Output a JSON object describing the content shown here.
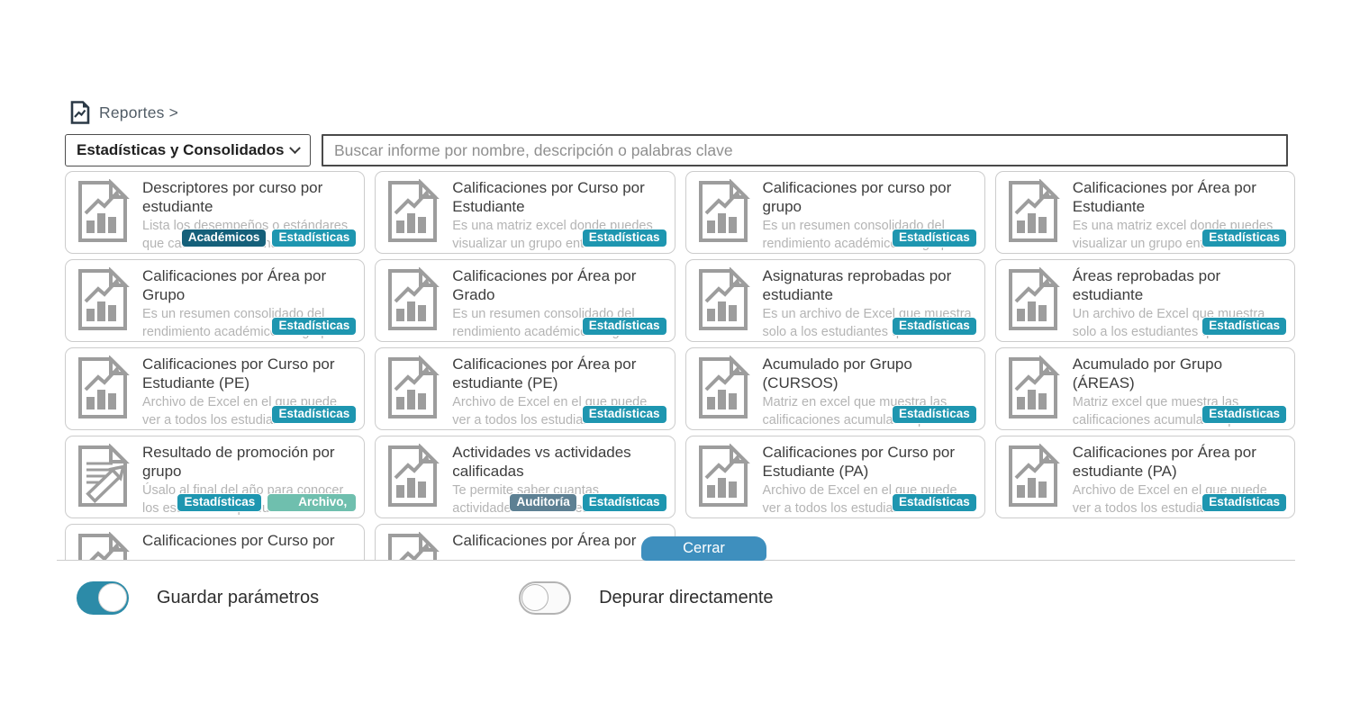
{
  "header": {
    "breadcrumb": "Reportes >"
  },
  "filters": {
    "category_selected": "Estadísticas y Consolidados",
    "search_placeholder": "Buscar informe por nombre, descripción o palabras clave"
  },
  "tag_colors": {
    "Estadísticas": "#1e96b0",
    "Académicos": "#15607a",
    "Auditoría": "#5d8093",
    "Archivo,": "#6fbfae"
  },
  "cards": [
    {
      "title": "Descriptores por curso por estudiante",
      "description": "Lista los desempeños o estándares que cada estudiante ha",
      "tags": [
        "Académicos",
        "Estadísticas"
      ],
      "icon": "chart-report-icon"
    },
    {
      "title": "Calificaciones por Curso por Estudiante",
      "description": "Es una matriz excel donde puedes visualizar un grupo entero de estudiantes",
      "tags": [
        "Estadísticas"
      ],
      "icon": "chart-report-icon"
    },
    {
      "title": "Calificaciones por curso por grupo",
      "description": "Es un resumen consolidado del rendimiento académico del grupo en cada cu",
      "tags": [
        "Estadísticas"
      ],
      "icon": "chart-report-icon"
    },
    {
      "title": "Calificaciones por Área por Estudiante",
      "description": "Es una matriz excel donde puedes visualizar un grupo entero de estudiantes",
      "tags": [
        "Estadísticas"
      ],
      "icon": "chart-report-icon"
    },
    {
      "title": "Calificaciones por Área por Grupo",
      "description": "Es un resumen consolidado del rendimiento académico del grupo en cada ár",
      "tags": [
        "Estadísticas"
      ],
      "icon": "chart-report-icon"
    },
    {
      "title": "Calificaciones por Área por Grado",
      "description": "Es un resumen consolidado del rendimiento académico del grado en cada ár",
      "tags": [
        "Estadísticas"
      ],
      "icon": "chart-report-icon"
    },
    {
      "title": "Asignaturas reprobadas por estudiante",
      "description": "Es un archivo de Excel que muestra solo a los estudiantes que no han apr",
      "tags": [
        "Estadísticas"
      ],
      "icon": "chart-report-icon"
    },
    {
      "title": "Áreas reprobadas por estudiante",
      "description": "Un archivo de Excel que muestra solo a los estudiantes que no han aprobado al menos un área. Las filas serán estudian",
      "tags": [
        "Estadísticas"
      ],
      "icon": "chart-report-icon"
    },
    {
      "title": "Calificaciones por Curso por Estudiante (PE)",
      "description": "Archivo de Excel en el que puede ver a todos los estudiantes de un gru",
      "tags": [
        "Estadísticas"
      ],
      "icon": "chart-report-icon"
    },
    {
      "title": "Calificaciones por Área por estudiante (PE)",
      "description": "Archivo de Excel en el que puede ver a todos los estudiantes de un gru",
      "tags": [
        "Estadísticas"
      ],
      "icon": "chart-report-icon"
    },
    {
      "title": "Acumulado por Grupo (CURSOS)",
      "description": "Matriz en excel que muestra las calificaciones acumuladas para el Periodo Académico actual de todos los e",
      "tags": [
        "Estadísticas"
      ],
      "icon": "chart-report-icon"
    },
    {
      "title": "Acumulado por Grupo (ÁREAS)",
      "description": "Matriz excel que muestra las calificaciones acumuladas para el Periodo Académico actual de todos los estudiantes",
      "tags": [
        "Estadísticas"
      ],
      "icon": "chart-report-icon"
    },
    {
      "title": "Resultado de promoción por grupo",
      "description": "Úsalo al final del año para conocer los estudiantes que fu",
      "tags": [
        "Estadísticas",
        "Archivo,"
      ],
      "icon": "promotion-report-icon"
    },
    {
      "title": "Actividades vs actividades calificadas",
      "description": "Te permite saber cuantas actividades se han creado en cada cu",
      "tags": [
        "Auditoría",
        "Estadísticas"
      ],
      "icon": "chart-report-icon"
    },
    {
      "title": "Calificaciones por Curso por Estudiante (PA)",
      "description": "Archivo de Excel en el que puede ver a todos los estudiantes de un gru",
      "tags": [
        "Estadísticas"
      ],
      "icon": "chart-report-icon"
    },
    {
      "title": "Calificaciones por Área por estudiante (PA)",
      "description": "Archivo de Excel en el que puede ver a todos los estudiantes de un gru",
      "tags": [
        "Estadísticas"
      ],
      "icon": "chart-report-icon"
    },
    {
      "title": "Calificaciones por Curso por",
      "description": "",
      "tags": [],
      "icon": "chart-report-icon"
    },
    {
      "title": "Calificaciones por Área por",
      "description": "",
      "tags": [],
      "icon": "chart-report-icon"
    }
  ],
  "footer": {
    "close_button": "Cerrar",
    "toggles": [
      {
        "label": "Guardar parámetros",
        "state": "on"
      },
      {
        "label": "Depurar directamente",
        "state": "off"
      }
    ]
  }
}
